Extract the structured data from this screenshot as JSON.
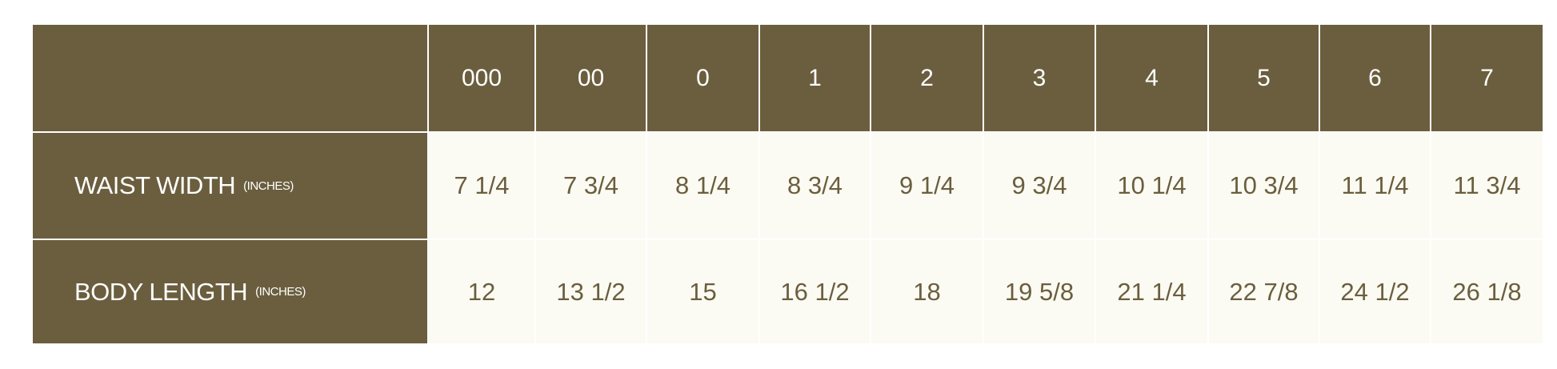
{
  "table": {
    "sizes": [
      "000",
      "00",
      "0",
      "1",
      "2",
      "3",
      "4",
      "5",
      "6",
      "7"
    ],
    "rows": [
      {
        "label": "WAIST WIDTH",
        "unit": "(INCHES)",
        "values": [
          "7 1/4",
          "7 3/4",
          "8 1/4",
          "8 3/4",
          "9 1/4",
          "9 3/4",
          "10 1/4",
          "10 3/4",
          "11 1/4",
          "11 3/4"
        ]
      },
      {
        "label": "BODY LENGTH",
        "unit": "(INCHES)",
        "values": [
          "12",
          "13 1/2",
          "15",
          "16 1/2",
          "18",
          "19 5/8",
          "21 1/4",
          "22 7/8",
          "24 1/2",
          "26 1/8"
        ]
      }
    ]
  },
  "colors": {
    "brand": "#6b5e3e",
    "cell_bg": "#fbfbf3"
  }
}
